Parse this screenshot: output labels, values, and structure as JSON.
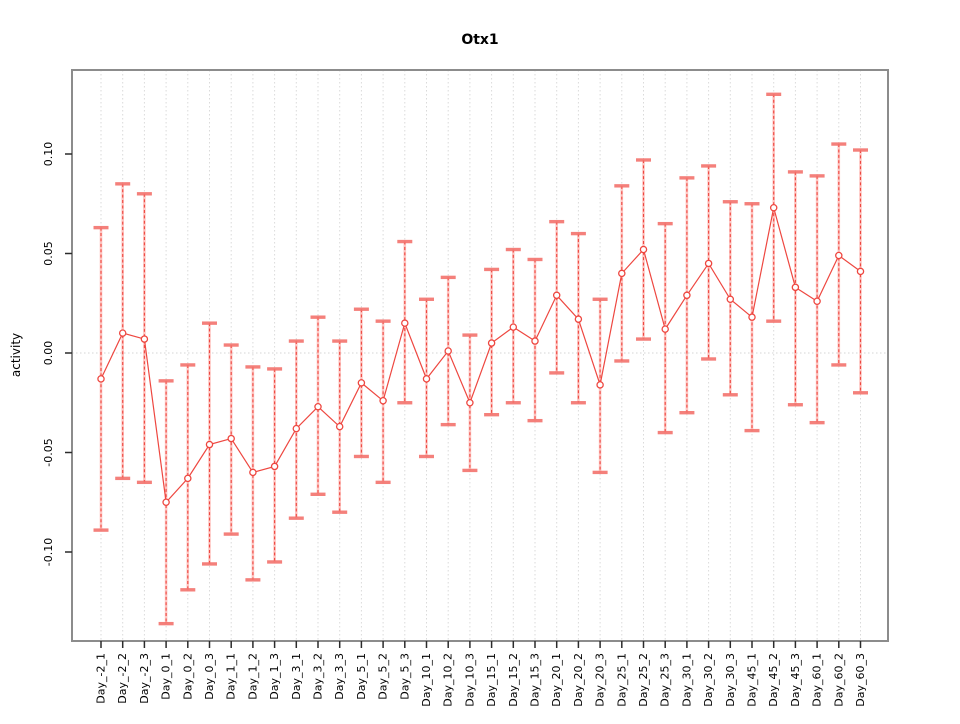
{
  "figure": {
    "title": "Otx1",
    "ylabel": "activity"
  },
  "chart_data": {
    "type": "scatter",
    "subtype": "means-with-error-bars",
    "title": "Otx1",
    "xlabel": "",
    "ylabel": "activity",
    "ylim": [
      -0.145,
      0.142
    ],
    "grid": "vertical-dotted-per-category-plus-dotted-zero-line",
    "legend": "none",
    "yticks": [
      {
        "v": 0.1,
        "label": "0.10"
      },
      {
        "v": 0.05,
        "label": "0.05"
      },
      {
        "v": 0.0,
        "label": "0.00"
      },
      {
        "v": -0.05,
        "label": "-0.05"
      },
      {
        "v": -0.1,
        "label": "-0.10"
      }
    ],
    "categories": [
      "Day_-2_1",
      "Day_-2_2",
      "Day_-2_3",
      "Day_0_1",
      "Day_0_2",
      "Day_0_3",
      "Day_1_1",
      "Day_1_2",
      "Day_1_3",
      "Day_3_1",
      "Day_3_2",
      "Day_3_3",
      "Day_5_1",
      "Day_5_2",
      "Day_5_3",
      "Day_10_1",
      "Day_10_2",
      "Day_10_3",
      "Day_15_1",
      "Day_15_2",
      "Day_15_3",
      "Day_20_1",
      "Day_20_2",
      "Day_20_3",
      "Day_25_1",
      "Day_25_2",
      "Day_25_3",
      "Day_30_1",
      "Day_30_2",
      "Day_30_3",
      "Day_45_1",
      "Day_45_2",
      "Day_45_3",
      "Day_60_1",
      "Day_60_2",
      "Day_60_3"
    ],
    "series": [
      {
        "name": "activity",
        "center": [
          -0.013,
          0.01,
          0.007,
          -0.075,
          -0.063,
          -0.046,
          -0.043,
          -0.06,
          -0.057,
          -0.038,
          -0.027,
          -0.037,
          -0.015,
          -0.024,
          0.015,
          -0.013,
          0.001,
          -0.025,
          0.005,
          0.013,
          0.006,
          0.029,
          0.017,
          -0.016,
          0.04,
          0.052,
          0.012,
          0.029,
          0.045,
          0.027,
          0.018,
          0.073,
          0.033,
          0.026,
          0.049,
          0.041
        ],
        "lower": [
          -0.089,
          -0.063,
          -0.065,
          -0.136,
          -0.119,
          -0.106,
          -0.091,
          -0.114,
          -0.105,
          -0.083,
          -0.071,
          -0.08,
          -0.052,
          -0.065,
          -0.025,
          -0.052,
          -0.036,
          -0.059,
          -0.031,
          -0.025,
          -0.034,
          -0.01,
          -0.025,
          -0.06,
          -0.004,
          0.007,
          -0.04,
          -0.03,
          -0.003,
          -0.021,
          -0.039,
          0.016,
          -0.026,
          -0.035,
          -0.006,
          -0.02
        ],
        "upper": [
          0.063,
          0.085,
          0.08,
          -0.014,
          -0.006,
          0.015,
          0.004,
          -0.007,
          -0.008,
          0.006,
          0.018,
          0.006,
          0.022,
          0.016,
          0.056,
          0.027,
          0.038,
          0.009,
          0.042,
          0.052,
          0.047,
          0.066,
          0.06,
          0.027,
          0.084,
          0.097,
          0.065,
          0.088,
          0.094,
          0.076,
          0.075,
          0.13,
          0.091,
          0.089,
          0.105,
          0.102
        ]
      }
    ],
    "colors": {
      "point_line": "#ee4740",
      "bar_dash": "#ee4740",
      "bar_halo": "#ffb5b0",
      "cap": "#f3736d",
      "grid": "#dadada",
      "zero_line": "#d5d5d5",
      "box": "#8c8c8c",
      "tick": "#2b2b2b",
      "text": "#000000"
    }
  }
}
